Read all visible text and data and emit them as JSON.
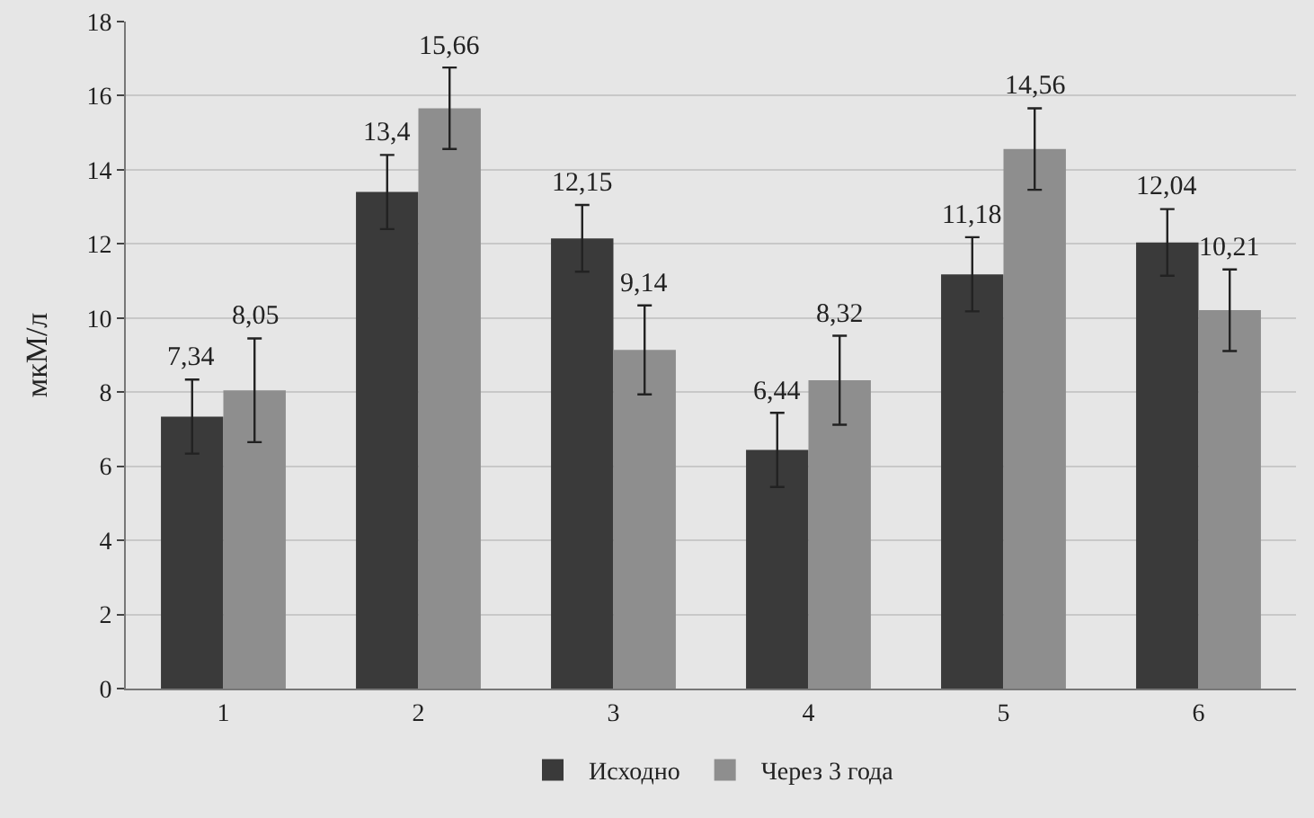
{
  "chart_data": {
    "type": "bar",
    "ylabel": "мкМ/л",
    "categories": [
      "1",
      "2",
      "3",
      "4",
      "5",
      "6"
    ],
    "series": [
      {
        "name": "Исходно",
        "color": "#3a3a3a",
        "values": [
          7.34,
          13.4,
          12.15,
          6.44,
          11.18,
          12.04
        ],
        "value_labels": [
          "7,34",
          "13,4",
          "12,15",
          "6,44",
          "11,18",
          "12,04"
        ],
        "errors": [
          1.0,
          1.0,
          0.9,
          1.0,
          1.0,
          0.9
        ]
      },
      {
        "name": "Через 3 года",
        "color": "#8e8e8e",
        "values": [
          8.05,
          15.66,
          9.14,
          8.32,
          14.56,
          10.21
        ],
        "value_labels": [
          "8,05",
          "15,66",
          "9,14",
          "8,32",
          "14,56",
          "10,21"
        ],
        "errors": [
          1.4,
          1.1,
          1.2,
          1.2,
          1.1,
          1.1
        ]
      }
    ],
    "ylim": [
      0,
      18
    ],
    "yticks": [
      0,
      2,
      4,
      6,
      8,
      10,
      12,
      14,
      16,
      18
    ],
    "grid": "y",
    "legend": "bottom"
  }
}
